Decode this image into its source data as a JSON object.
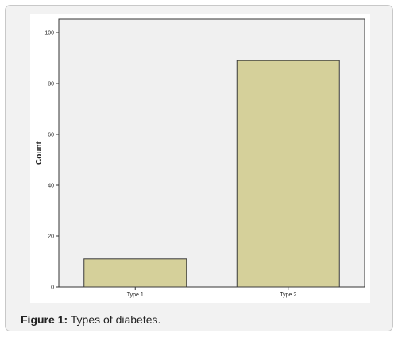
{
  "caption": {
    "label": "Figure 1:",
    "text": " Types of diabetes."
  },
  "chart_data": {
    "type": "bar",
    "categories": [
      "Type 1",
      "Type 2"
    ],
    "values": [
      11,
      89
    ],
    "ylabel": "Count",
    "xlabel": "",
    "ylim": [
      0,
      100
    ],
    "yticks": [
      0,
      20,
      40,
      60,
      80,
      100
    ],
    "grid": false,
    "colors": {
      "bar_fill": "#d5d09a",
      "bar_stroke": "#3a3a3a",
      "plot_bg": "#f0f0f0",
      "axis": "#333333"
    }
  }
}
